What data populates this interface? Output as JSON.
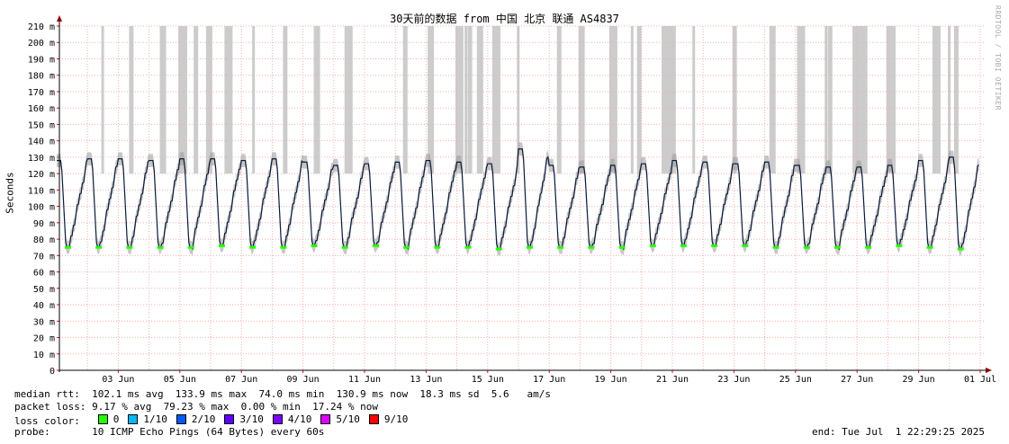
{
  "chart_data": {
    "type": "line",
    "title": "30天前的数据 from 中国 北京 联通 AS4837",
    "ylabel": "Seconds",
    "credit": "RRDTOOL / TOBI OETIKER",
    "ylim": [
      0,
      210
    ],
    "y_ticks": [
      "0",
      "10 m",
      "20 m",
      "30 m",
      "40 m",
      "50 m",
      "60 m",
      "70 m",
      "80 m",
      "90 m",
      "100 m",
      "110 m",
      "120 m",
      "130 m",
      "140 m",
      "150 m",
      "160 m",
      "170 m",
      "180 m",
      "190 m",
      "200 m",
      "210 m"
    ],
    "x_ticks": [
      "03 Jun",
      "05 Jun",
      "07 Jun",
      "09 Jun",
      "11 Jun",
      "13 Jun",
      "15 Jun",
      "17 Jun",
      "19 Jun",
      "21 Jun",
      "23 Jun",
      "25 Jun",
      "27 Jun",
      "29 Jun",
      "01 Jul"
    ],
    "grid": true,
    "series": [
      {
        "unit": "ms",
        "daily_peak": [
          128,
          129,
          129,
          128,
          129,
          129,
          128,
          129,
          127,
          125,
          126,
          127,
          128,
          127,
          126,
          135,
          125,
          124,
          125,
          126,
          128,
          127,
          126,
          127,
          125,
          124,
          124,
          125,
          128,
          130
        ],
        "daily_min": [
          75,
          75,
          75,
          75,
          75,
          76,
          75,
          75,
          76,
          75,
          76,
          75,
          75,
          75,
          74,
          75,
          75,
          75,
          75,
          76,
          76,
          76,
          76,
          75,
          75,
          75,
          75,
          76,
          75,
          74
        ]
      }
    ],
    "loss_bands_day_offsets": [
      1.0,
      1.9,
      2.9,
      3.5,
      3.7,
      4.0,
      4.4,
      5.0,
      5.9,
      6.9,
      7.9,
      8.9,
      9.0,
      10.8,
      11.6,
      12.5,
      12.8,
      12.9,
      13.2,
      13.7,
      14.5,
      15.8,
      16.5,
      17.5,
      18.2,
      18.4,
      19.2,
      19.4,
      20.2,
      21.5,
      22.7,
      23.6,
      24.5,
      24.6,
      25.4,
      25.6,
      25.8,
      26.5,
      26.6,
      28.0,
      28.5,
      28.7
    ]
  },
  "stats": {
    "rtt": "median rtt:  102.1 ms avg  133.9 ms max  74.0 ms min  130.9 ms now  18.3 ms sd  5.6   am/s",
    "loss": "packet loss: 9.17 % avg  79.23 % max  0.00 % min  17.24 % now",
    "loss_color_label": "loss color:",
    "probe": "probe:       10 ICMP Echo Pings (64 Bytes) every 60s",
    "end": "end: Tue Jul  1 22:29:25 2025"
  },
  "loss_colors": [
    {
      "label": "0",
      "color": "#26ff00"
    },
    {
      "label": "1/10",
      "color": "#00b8ff"
    },
    {
      "label": "2/10",
      "color": "#0059ff"
    },
    {
      "label": "3/10",
      "color": "#5e00ff"
    },
    {
      "label": "4/10",
      "color": "#7e00ff"
    },
    {
      "label": "5/10",
      "color": "#dd00ff"
    },
    {
      "label": "9/10",
      "color": "#ff0000"
    }
  ]
}
